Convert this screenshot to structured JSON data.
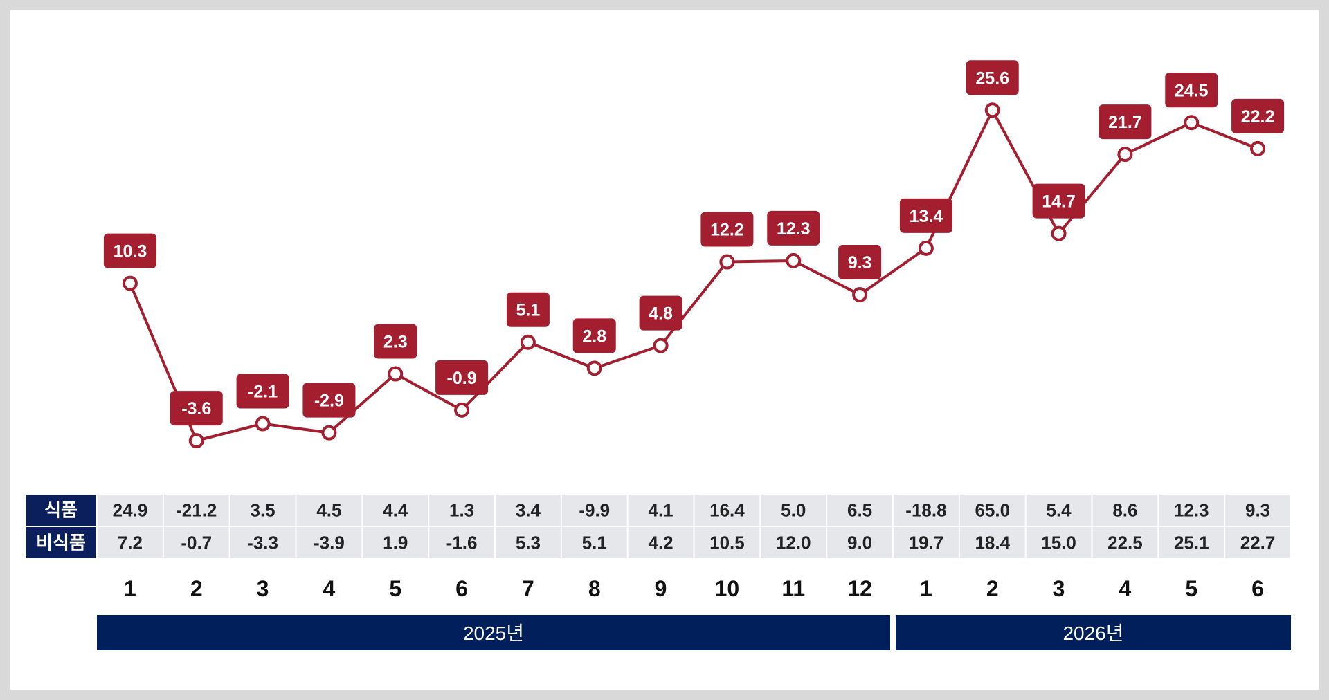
{
  "colors": {
    "line": "#a31f30",
    "label_bg": "#a31f30",
    "table_header_bg": "#0a1f5c",
    "table_cell_bg": "#e5e7eb",
    "year_bar_bg": "#001f5b"
  },
  "chart_data": {
    "type": "line",
    "categories": [
      "1",
      "2",
      "3",
      "4",
      "5",
      "6",
      "7",
      "8",
      "9",
      "10",
      "11",
      "12",
      "1",
      "2",
      "3",
      "4",
      "5",
      "6"
    ],
    "series": [
      {
        "values": [
          10.3,
          -3.6,
          -2.1,
          -2.9,
          2.3,
          -0.9,
          5.1,
          2.8,
          4.8,
          12.2,
          12.3,
          9.3,
          13.4,
          25.6,
          14.7,
          21.7,
          24.5,
          22.2
        ],
        "labels": [
          "10.3",
          "-3.6",
          "-2.1",
          "-2.9",
          "2.3",
          "-0.9",
          "5.1",
          "2.8",
          "4.8",
          "12.2",
          "12.3",
          "9.3",
          "13.4",
          "25.6",
          "14.7",
          "21.7",
          "24.5",
          "22.2"
        ]
      }
    ],
    "ylim": [
      -5,
      28
    ],
    "grid": false,
    "table": {
      "rows": [
        {
          "name": "식품",
          "values": [
            "24.9",
            "-21.2",
            "3.5",
            "4.5",
            "4.4",
            "1.3",
            "3.4",
            "-9.9",
            "4.1",
            "16.4",
            "5.0",
            "6.5",
            "-18.8",
            "65.0",
            "5.4",
            "8.6",
            "12.3",
            "9.3"
          ]
        },
        {
          "name": "비식품",
          "values": [
            "7.2",
            "-0.7",
            "-3.3",
            "-3.9",
            "1.9",
            "-1.6",
            "5.3",
            "5.1",
            "4.2",
            "10.5",
            "12.0",
            "9.0",
            "19.7",
            "18.4",
            "15.0",
            "22.5",
            "25.1",
            "22.7"
          ]
        }
      ]
    },
    "years": [
      {
        "label": "2025년",
        "months": 12
      },
      {
        "label": "2026년",
        "months": 6
      }
    ]
  }
}
